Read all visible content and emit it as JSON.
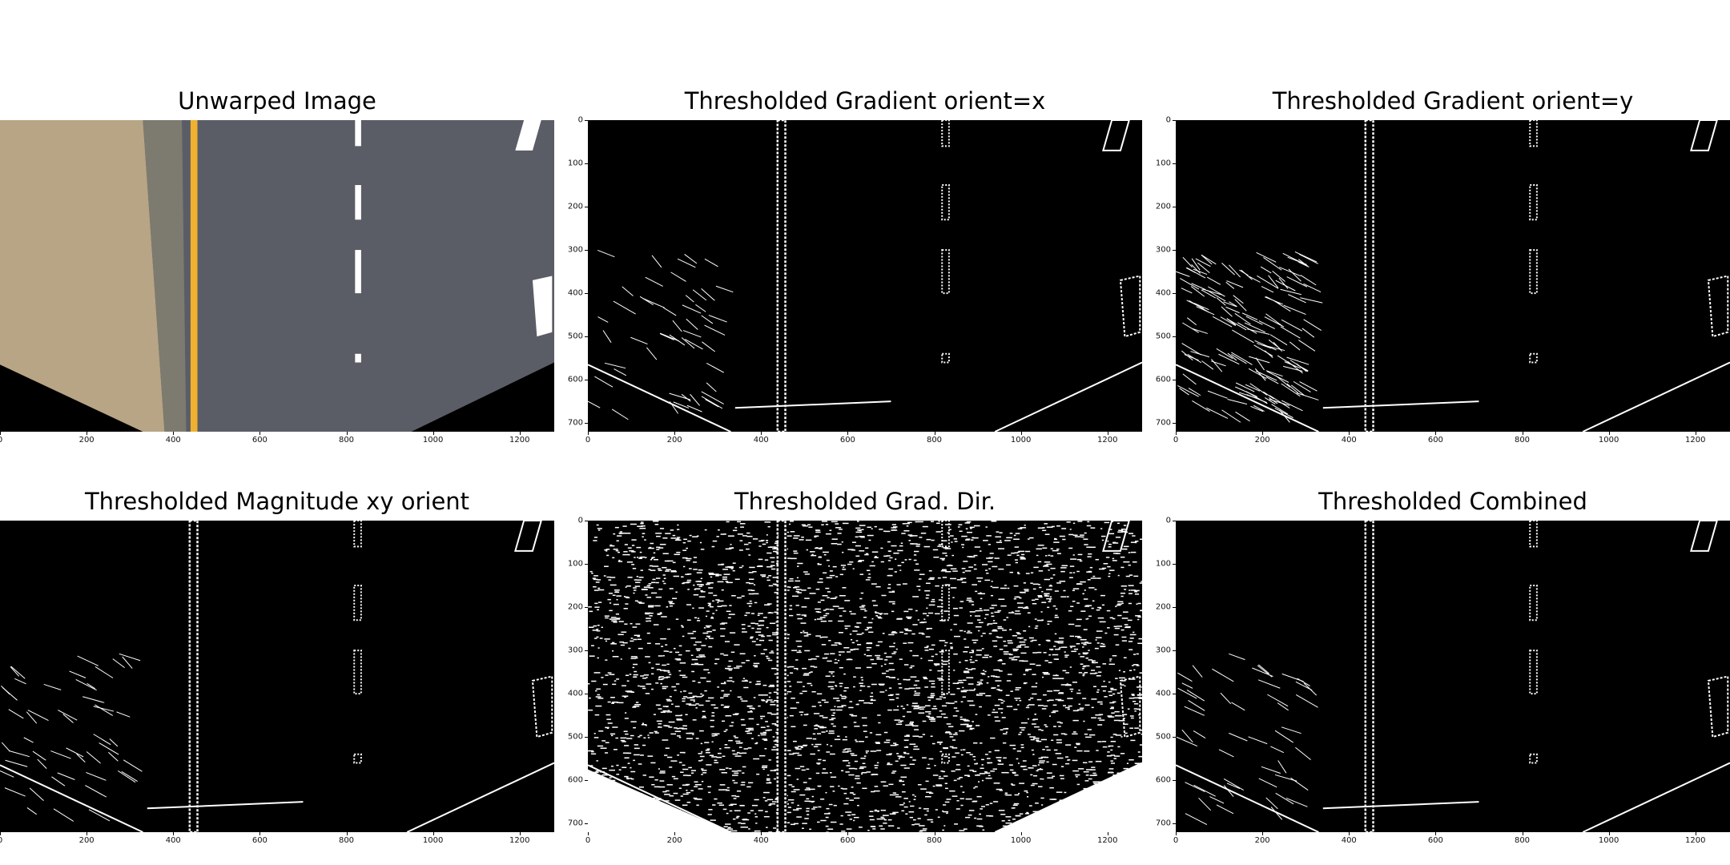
{
  "figure": {
    "panels": [
      {
        "id": "unwarped",
        "title": "Unwarped Image",
        "kind": "photo"
      },
      {
        "id": "grad_x",
        "title": "Thresholded Gradient orient=x",
        "kind": "binary",
        "noise": 0.0
      },
      {
        "id": "grad_y",
        "title": "Thresholded Gradient orient=y",
        "kind": "binary",
        "noise": 0.01
      },
      {
        "id": "mag",
        "title": "Thresholded Magnitude xy orient",
        "kind": "binary",
        "noise": 0.0
      },
      {
        "id": "dir",
        "title": "Thresholded Grad. Dir.",
        "kind": "binary",
        "noise": 0.5
      },
      {
        "id": "combined",
        "title": "Thresholded Combined",
        "kind": "binary",
        "noise": 0.0
      }
    ],
    "x_ticks": [
      "0",
      "200",
      "400",
      "600",
      "800",
      "1000",
      "1200"
    ],
    "y_ticks": [
      "0",
      "100",
      "200",
      "300",
      "400",
      "500",
      "600",
      "700"
    ],
    "image_width": 1280,
    "image_height": 720,
    "colors": {
      "road": "#5b5d66",
      "dirt": "#b8a585",
      "yellow_line": "#f0b030",
      "white_line": "#ffffff"
    }
  }
}
